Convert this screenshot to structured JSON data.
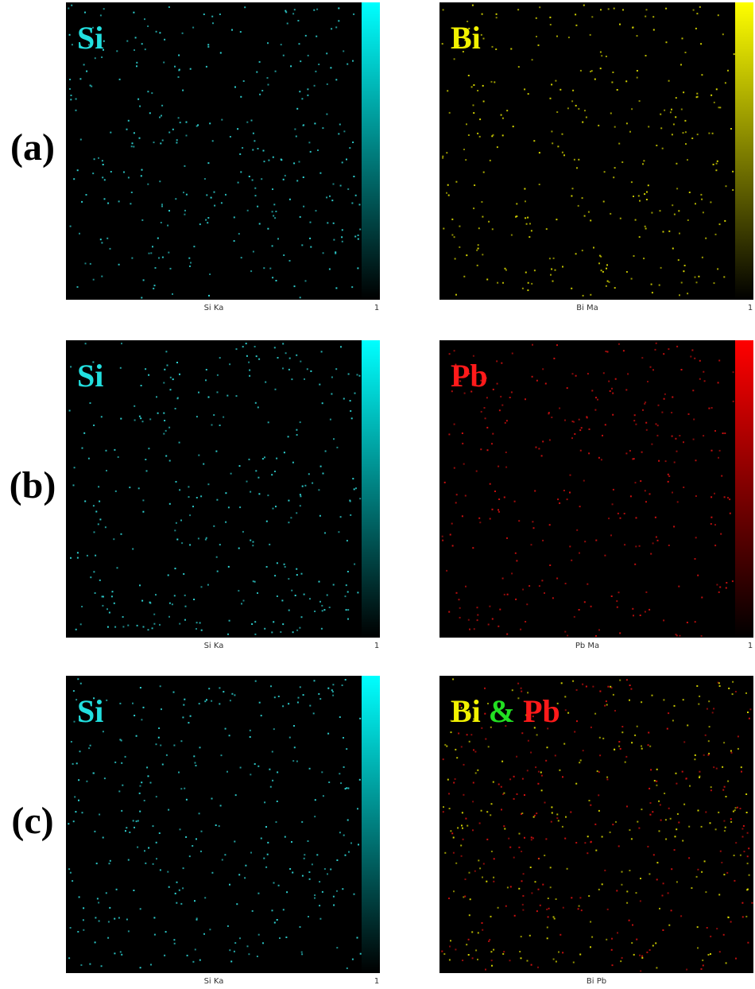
{
  "rows": [
    {
      "label": "(a)",
      "panels": [
        {
          "title": [
            {
              "text": "Si",
              "color": "#22e0e0"
            }
          ],
          "caption": "Si Ka",
          "scale_max": "1",
          "colorbar": "#00ffff",
          "dot_colors": [
            "#2fd6d6"
          ]
        },
        {
          "title": [
            {
              "text": "Bi",
              "color": "#f2f200"
            }
          ],
          "caption": "Bi Ma",
          "scale_max": "1",
          "colorbar": "#ffff00",
          "dot_colors": [
            "#d8d800"
          ]
        }
      ]
    },
    {
      "label": "(b)",
      "panels": [
        {
          "title": [
            {
              "text": "Si",
              "color": "#22e0e0"
            }
          ],
          "caption": "Si Ka",
          "scale_max": "1",
          "colorbar": "#00ffff",
          "dot_colors": [
            "#2fd6d6"
          ]
        },
        {
          "title": [
            {
              "text": "Pb",
              "color": "#ff1a1a"
            }
          ],
          "caption": "Pb Ma",
          "scale_max": "1",
          "colorbar": "#ff0000",
          "dot_colors": [
            "#d01010"
          ]
        }
      ]
    },
    {
      "label": "(c)",
      "panels": [
        {
          "title": [
            {
              "text": "Si",
              "color": "#22e0e0"
            }
          ],
          "caption": "Si Ka",
          "scale_max": "1",
          "colorbar": "#00ffff",
          "dot_colors": [
            "#2fd6d6"
          ]
        },
        {
          "title": [
            {
              "text": "Bi",
              "color": "#f2f200"
            },
            {
              "text": "&",
              "color": "#22e022"
            },
            {
              "text": "Pb",
              "color": "#ff1a1a"
            }
          ],
          "caption": "Bi Pb",
          "dot_colors": [
            "#d8d800",
            "#d01010"
          ]
        }
      ]
    }
  ]
}
